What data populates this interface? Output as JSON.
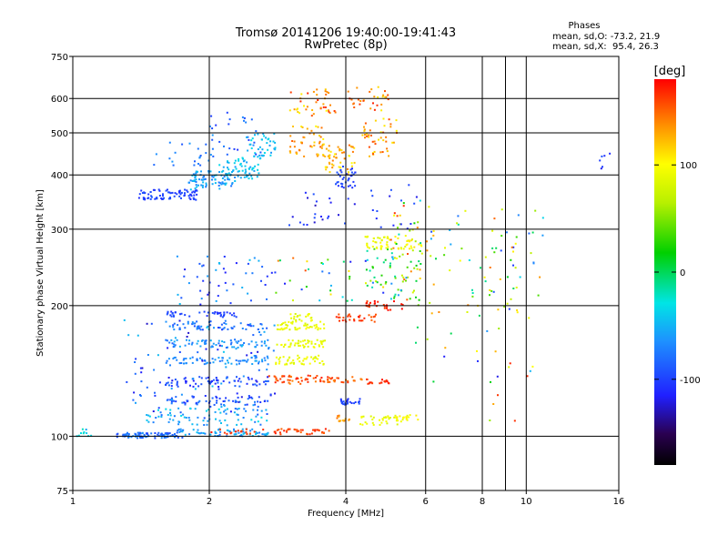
{
  "chart_data": {
    "type": "scatter",
    "title": "Tromsø 20141206 19:40:00-19:41:43",
    "subtitle": "RwPretec (8p)",
    "xlabel": "Frequency [MHz]",
    "ylabel": "Stationary phase Virtual Height [km]",
    "x_scale": "log",
    "y_scale": "log",
    "xlim": [
      1,
      16
    ],
    "ylim": [
      75,
      750
    ],
    "x_ticks": [
      "1",
      "2",
      "4",
      "6",
      "8",
      "10",
      "16"
    ],
    "x_tick_values": [
      1,
      2,
      4,
      6,
      8,
      10,
      16
    ],
    "x_minor_gridlines": [
      9
    ],
    "y_ticks": [
      "75",
      "100",
      "200",
      "300",
      "400",
      "500",
      "600",
      "750"
    ],
    "y_tick_values": [
      75,
      100,
      200,
      300,
      400,
      500,
      600,
      750
    ],
    "grid": true,
    "stats": {
      "heading": "Phases",
      "line1": "mean, sd,O: -73.2, 21.9",
      "line2": "mean, sd,X:  95.4, 26.3"
    },
    "colorbar": {
      "label": "[deg]",
      "range": [
        -180,
        180
      ],
      "ticks": [
        "100",
        "0",
        "-100"
      ],
      "tick_values": [
        100,
        0,
        -100
      ]
    },
    "point_clusters": [
      {
        "freq": [
          1.02,
          1.1
        ],
        "height": [
          100,
          104
        ],
        "phase": [
          -60,
          -20
        ],
        "count": 10
      },
      {
        "freq": [
          1.25,
          1.75
        ],
        "height": [
          99,
          102
        ],
        "phase": [
          -100,
          -60
        ],
        "count": 90
      },
      {
        "freq": [
          1.7,
          2.7
        ],
        "height": [
          100,
          104
        ],
        "phase": [
          -80,
          -40
        ],
        "count": 70
      },
      {
        "freq": [
          2.0,
          3.7
        ],
        "height": [
          101,
          104
        ],
        "phase": [
          150,
          175
        ],
        "count": 55
      },
      {
        "freq": [
          1.45,
          2.7
        ],
        "height": [
          106,
          116
        ],
        "phase": [
          -80,
          -30
        ],
        "count": 75
      },
      {
        "freq": [
          1.6,
          2.7
        ],
        "height": [
          118,
          124
        ],
        "phase": [
          -110,
          -70
        ],
        "count": 60
      },
      {
        "freq": [
          3.9,
          4.3
        ],
        "height": [
          118,
          122
        ],
        "phase": [
          -110,
          -90
        ],
        "count": 25
      },
      {
        "freq": [
          4.3,
          5.2
        ],
        "height": [
          106,
          112
        ],
        "phase": [
          80,
          100
        ],
        "count": 30
      },
      {
        "freq": [
          5.0,
          5.8
        ],
        "height": [
          108,
          112
        ],
        "phase": [
          90,
          110
        ],
        "count": 20
      },
      {
        "freq": [
          3.8,
          4.1
        ],
        "height": [
          108,
          112
        ],
        "phase": [
          120,
          150
        ],
        "count": 15
      },
      {
        "freq": [
          1.55,
          2.7
        ],
        "height": [
          130,
          137
        ],
        "phase": [
          -120,
          -80
        ],
        "count": 70
      },
      {
        "freq": [
          2.7,
          3.6
        ],
        "height": [
          132,
          138
        ],
        "phase": [
          140,
          175
        ],
        "count": 45
      },
      {
        "freq": [
          3.6,
          4.4
        ],
        "height": [
          133,
          137
        ],
        "phase": [
          140,
          170
        ],
        "count": 25
      },
      {
        "freq": [
          4.4,
          5.0
        ],
        "height": [
          132,
          136
        ],
        "phase": [
          160,
          180
        ],
        "count": 18
      },
      {
        "freq": [
          1.6,
          2.7
        ],
        "height": [
          146,
          152
        ],
        "phase": [
          -80,
          -50
        ],
        "count": 65
      },
      {
        "freq": [
          2.8,
          3.6
        ],
        "height": [
          146,
          154
        ],
        "phase": [
          80,
          100
        ],
        "count": 45
      },
      {
        "freq": [
          1.6,
          2.7
        ],
        "height": [
          160,
          167
        ],
        "phase": [
          -80,
          -50
        ],
        "count": 65
      },
      {
        "freq": [
          2.8,
          3.6
        ],
        "height": [
          160,
          167
        ],
        "phase": [
          80,
          100
        ],
        "count": 45
      },
      {
        "freq": [
          1.6,
          2.7
        ],
        "height": [
          176,
          184
        ],
        "phase": [
          -100,
          -60
        ],
        "count": 60
      },
      {
        "freq": [
          2.8,
          3.6
        ],
        "height": [
          176,
          184
        ],
        "phase": [
          80,
          100
        ],
        "count": 45
      },
      {
        "freq": [
          1.6,
          2.4
        ],
        "height": [
          188,
          194
        ],
        "phase": [
          -110,
          -90
        ],
        "count": 40
      },
      {
        "freq": [
          3.0,
          3.4
        ],
        "height": [
          184,
          192
        ],
        "phase": [
          80,
          100
        ],
        "count": 20
      },
      {
        "freq": [
          3.8,
          4.7
        ],
        "height": [
          183,
          192
        ],
        "phase": [
          150,
          175
        ],
        "count": 30
      },
      {
        "freq": [
          4.4,
          5.4
        ],
        "height": [
          195,
          205
        ],
        "phase": [
          160,
          180
        ],
        "count": 25
      },
      {
        "freq": [
          1.4,
          1.9
        ],
        "height": [
          350,
          370
        ],
        "phase": [
          -110,
          -90
        ],
        "count": 80
      },
      {
        "freq": [
          1.8,
          2.3
        ],
        "height": [
          370,
          410
        ],
        "phase": [
          -80,
          -40
        ],
        "count": 80
      },
      {
        "freq": [
          2.1,
          2.6
        ],
        "height": [
          390,
          440
        ],
        "phase": [
          -60,
          -30
        ],
        "count": 60
      },
      {
        "freq": [
          2.4,
          2.8
        ],
        "height": [
          440,
          500
        ],
        "phase": [
          -60,
          -30
        ],
        "count": 40
      },
      {
        "freq": [
          3.0,
          3.6
        ],
        "height": [
          440,
          520
        ],
        "phase": [
          100,
          160
        ],
        "count": 50
      },
      {
        "freq": [
          3.6,
          4.2
        ],
        "height": [
          400,
          470
        ],
        "phase": [
          100,
          150
        ],
        "count": 50
      },
      {
        "freq": [
          3.8,
          4.2
        ],
        "height": [
          370,
          420
        ],
        "phase": [
          -110,
          -90
        ],
        "count": 35
      },
      {
        "freq": [
          4.3,
          5.2
        ],
        "height": [
          440,
          540
        ],
        "phase": [
          100,
          160
        ],
        "count": 45
      },
      {
        "freq": [
          3.0,
          3.8
        ],
        "height": [
          540,
          630
        ],
        "phase": [
          100,
          170
        ],
        "count": 40
      },
      {
        "freq": [
          4.0,
          5.2
        ],
        "height": [
          560,
          640
        ],
        "phase": [
          100,
          170
        ],
        "count": 30
      },
      {
        "freq": [
          4.4,
          5.9
        ],
        "height": [
          270,
          290
        ],
        "phase": [
          80,
          110
        ],
        "count": 60
      },
      {
        "freq": [
          4.3,
          5.9
        ],
        "height": [
          220,
          270
        ],
        "phase": [
          -20,
          100
        ],
        "count": 40
      },
      {
        "freq": [
          5.0,
          5.9
        ],
        "height": [
          200,
          360
        ],
        "phase": [
          -100,
          170
        ],
        "count": 50
      },
      {
        "freq": [
          6.0,
          11.0
        ],
        "height": [
          190,
          340
        ],
        "phase": [
          -110,
          150
        ],
        "count": 80
      },
      {
        "freq": [
          1.7,
          2.8
        ],
        "height": [
          200,
          260
        ],
        "phase": [
          -120,
          -40
        ],
        "count": 50
      },
      {
        "freq": [
          1.3,
          2.8
        ],
        "height": [
          110,
          190
        ],
        "phase": [
          -130,
          -40
        ],
        "count": 110
      },
      {
        "freq": [
          2.0,
          2.6
        ],
        "height": [
          440,
          560
        ],
        "phase": [
          -110,
          -60
        ],
        "count": 30
      },
      {
        "freq": [
          1.5,
          2.0
        ],
        "height": [
          420,
          480
        ],
        "phase": [
          -90,
          -60
        ],
        "count": 20
      },
      {
        "freq": [
          2.8,
          5.5
        ],
        "height": [
          200,
          260
        ],
        "phase": [
          -120,
          175
        ],
        "count": 40
      },
      {
        "freq": [
          3.0,
          4.2
        ],
        "height": [
          300,
          380
        ],
        "phase": [
          -130,
          -90
        ],
        "count": 25
      },
      {
        "freq": [
          5.5,
          11.0
        ],
        "height": [
          105,
          190
        ],
        "phase": [
          -120,
          170
        ],
        "count": 25
      },
      {
        "freq": [
          14.5,
          15.3
        ],
        "height": [
          410,
          450
        ],
        "phase": [
          -120,
          -90
        ],
        "count": 6
      },
      {
        "freq": [
          4.4,
          5.8
        ],
        "height": [
          300,
          380
        ],
        "phase": [
          -120,
          -90
        ],
        "count": 15
      }
    ]
  }
}
